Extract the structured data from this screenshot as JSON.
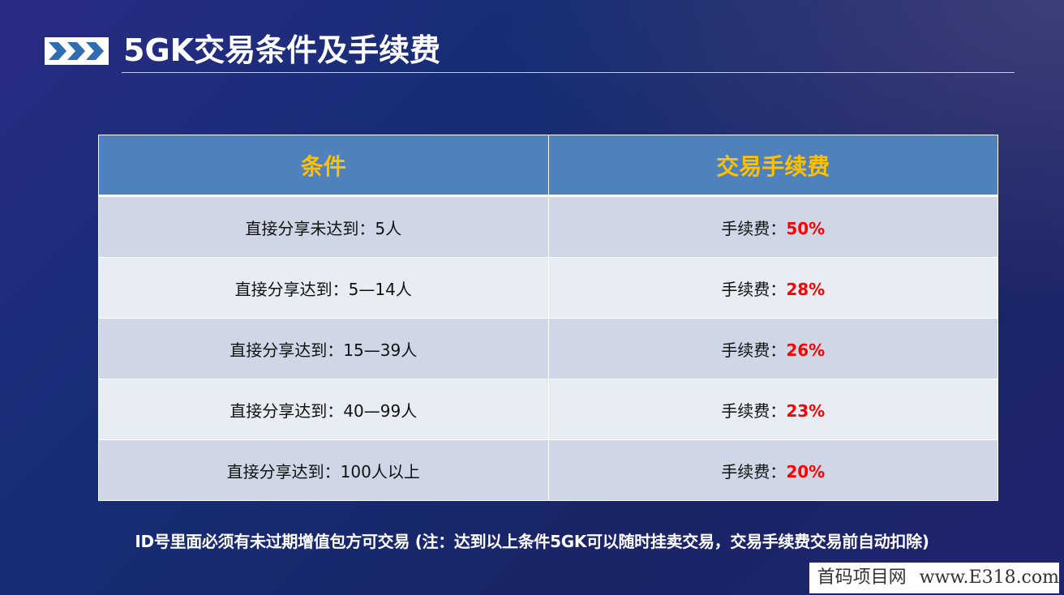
{
  "header": {
    "icon": "triple-chevron-right-icon",
    "title": "5GK交易条件及手续费"
  },
  "table": {
    "headers": [
      "条件",
      "交易手续费"
    ],
    "fee_label": "手续费：",
    "rows": [
      {
        "condition": "直接分享未达到：5人",
        "fee": "50%"
      },
      {
        "condition": "直接分享达到：5—14人",
        "fee": "28%"
      },
      {
        "condition": "直接分享达到：15—39人",
        "fee": "26%"
      },
      {
        "condition": "直接分享达到：40—99人",
        "fee": "23%"
      },
      {
        "condition": "直接分享达到：100人以上",
        "fee": "20%"
      }
    ]
  },
  "note": "ID号里面必须有未过期增值包方可交易 (注：达到以上条件5GK可以随时挂卖交易，交易手续费交易前自动扣除)",
  "watermark": {
    "site_name": "首码项目网",
    "url": "www.E318.com"
  },
  "colors": {
    "header_fill": "#4f81bd",
    "header_text": "#ffc000",
    "fee_value": "#ff0000",
    "row_odd": "#cfd7e6",
    "row_even": "#e8edf4"
  }
}
